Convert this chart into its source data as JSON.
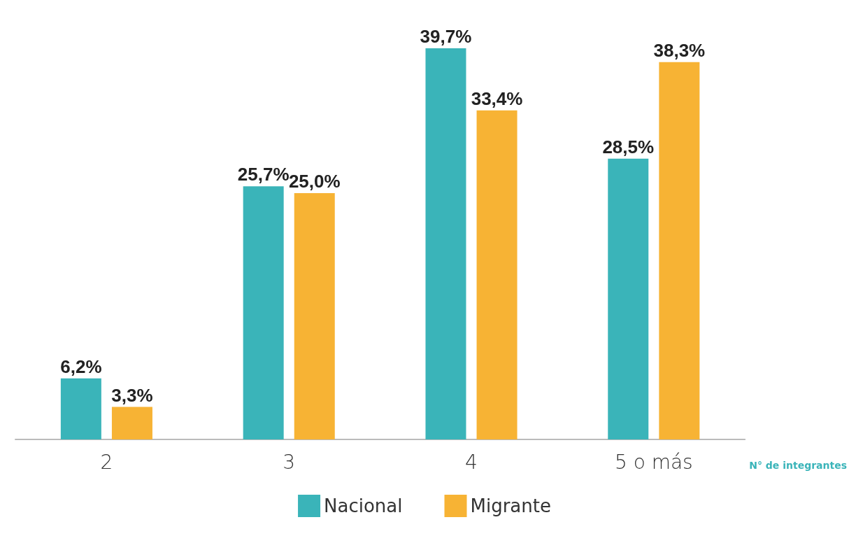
{
  "chart_data": {
    "type": "bar",
    "xlabel": "N° de integrantes",
    "categories": [
      "2",
      "3",
      "4",
      "5 o más"
    ],
    "series": [
      {
        "name": "Nacional",
        "color": "#3ab4b9",
        "values": [
          6.2,
          25.7,
          39.7,
          28.5
        ],
        "value_labels": [
          "6,2%",
          "25,7%",
          "39,7%",
          "28,5%"
        ]
      },
      {
        "name": "Migrante",
        "color": "#f7b334",
        "values": [
          3.3,
          25.0,
          33.4,
          38.3
        ],
        "value_labels": [
          "3,3%",
          "25,0%",
          "33,4%",
          "38,3%"
        ]
      }
    ],
    "legend": "bottom"
  }
}
